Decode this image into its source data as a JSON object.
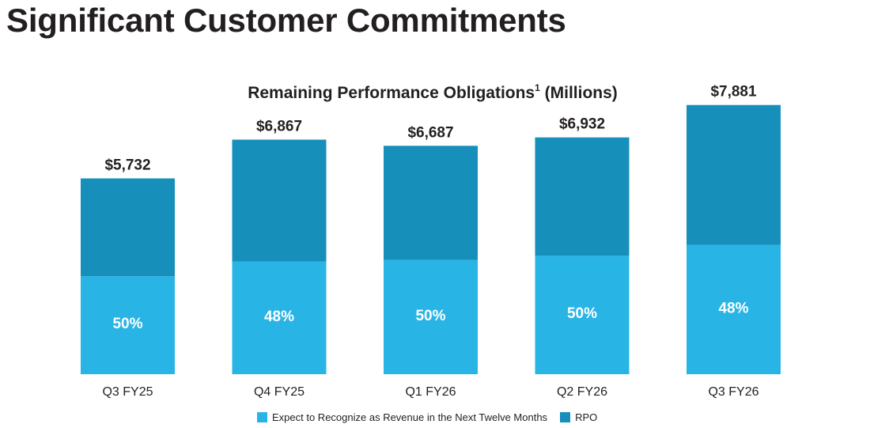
{
  "header": {
    "title": "Significant Customer Commitments"
  },
  "chart_data": {
    "type": "bar",
    "stacked": true,
    "title": "Remaining Performance Obligations",
    "title_superscript": "1",
    "title_suffix": "(Millions)",
    "categories": [
      "Q3 FY25",
      "Q4 FY25",
      "Q1 FY26",
      "Q2 FY26",
      "Q3 FY26"
    ],
    "totals": [
      5732,
      6867,
      6687,
      6932,
      7881
    ],
    "total_labels": [
      "$5,732",
      "$6,867",
      "$6,687",
      "$6,932",
      "$7,881"
    ],
    "ntm_percent": [
      50,
      48,
      50,
      50,
      48
    ],
    "ntm_labels": [
      "50%",
      "48%",
      "50%",
      "50%",
      "48%"
    ],
    "series": [
      {
        "name": "Expect to Recognize as Revenue in the Next Twelve Months",
        "color": "#29b4e6",
        "values": [
          2866,
          3296,
          3344,
          3466,
          3783
        ]
      },
      {
        "name": "RPO",
        "color": "#168fba",
        "values": [
          2866,
          3571,
          3343,
          3466,
          4098
        ]
      }
    ],
    "ylim": [
      0,
      8500
    ],
    "grid": false,
    "legend_position": "bottom"
  }
}
